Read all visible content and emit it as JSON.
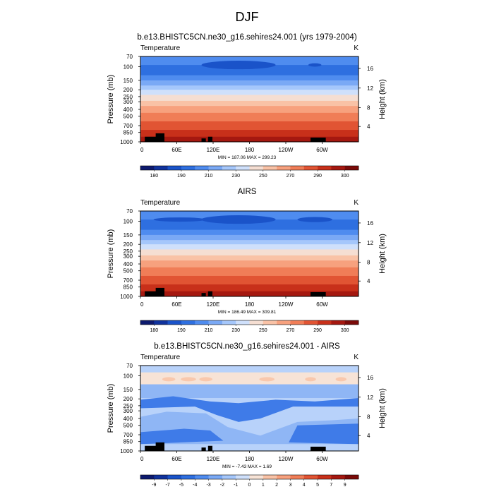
{
  "figure": {
    "title": "DJF"
  },
  "shared": {
    "x_ticks": [
      "0",
      "60E",
      "120E",
      "180",
      "120W",
      "60W"
    ],
    "y_ticks": [
      "70",
      "100",
      "150",
      "200",
      "250",
      "300",
      "400",
      "500",
      "700",
      "850",
      "1000"
    ],
    "height_ticks": [
      "16",
      "12",
      "8",
      "4"
    ]
  },
  "chart_data": [
    {
      "type": "heatmap",
      "title": "b.e13.BHISTC5CN.ne30_g16.sehires24.001 (yrs 1979-2004)",
      "left_label": "Temperature",
      "right_label": "K",
      "ylabel": "Pressure (mb)",
      "ylabel_right": "Height (km)",
      "x_ticks": [
        "0",
        "60E",
        "120E",
        "180",
        "120W",
        "60W"
      ],
      "y_ticks": [
        "70",
        "100",
        "150",
        "200",
        "250",
        "300",
        "400",
        "500",
        "700",
        "850",
        "1000"
      ],
      "yright_ticks": [
        "16",
        "12",
        "8",
        "4"
      ],
      "stats": "MIN = 187.06  MAX = 299.23",
      "colorbar_labels": [
        "180",
        "190",
        "210",
        "230",
        "250",
        "270",
        "290",
        "300"
      ],
      "ylim": [
        1000,
        70
      ],
      "xlim": [
        0,
        360
      ]
    },
    {
      "type": "heatmap",
      "title": "AIRS",
      "left_label": "Temperature",
      "right_label": "K",
      "ylabel": "Pressure (mb)",
      "ylabel_right": "Height (km)",
      "x_ticks": [
        "0",
        "60E",
        "120E",
        "180",
        "120W",
        "60W"
      ],
      "y_ticks": [
        "70",
        "100",
        "150",
        "200",
        "250",
        "300",
        "400",
        "500",
        "700",
        "850",
        "1000"
      ],
      "yright_ticks": [
        "16",
        "12",
        "8",
        "4"
      ],
      "stats": "MIN = 186.49  MAX = 309.81",
      "colorbar_labels": [
        "180",
        "190",
        "210",
        "230",
        "250",
        "270",
        "290",
        "300"
      ],
      "ylim": [
        1000,
        70
      ],
      "xlim": [
        0,
        360
      ]
    },
    {
      "type": "heatmap",
      "title": "b.e13.BHISTC5CN.ne30_g16.sehires24.001 - AIRS",
      "left_label": "Temperature",
      "right_label": "K",
      "ylabel": "Pressure (mb)",
      "ylabel_right": "Height (km)",
      "x_ticks": [
        "0",
        "60E",
        "120E",
        "180",
        "120W",
        "60W"
      ],
      "y_ticks": [
        "70",
        "100",
        "150",
        "200",
        "250",
        "300",
        "400",
        "500",
        "700",
        "850",
        "1000"
      ],
      "yright_ticks": [
        "16",
        "12",
        "8",
        "4"
      ],
      "stats": "MIN = -7.43  MAX =  1.69",
      "colorbar_labels": [
        "-9",
        "-7",
        "-5",
        "-4",
        "-3",
        "-2",
        "-1",
        "0",
        "1",
        "2",
        "3",
        "4",
        "5",
        "7",
        "9"
      ],
      "ylim": [
        1000,
        70
      ],
      "xlim": [
        0,
        360
      ]
    }
  ],
  "colors": {
    "temp_levels": [
      "#0d1a6e",
      "#10329c",
      "#1a53c9",
      "#2e6fe0",
      "#4f8cef",
      "#7aa9f5",
      "#a5c7fb",
      "#cfe0fb",
      "#f5ded2",
      "#f9c2a6",
      "#f7a17e",
      "#f07d57",
      "#e15433",
      "#c8301a",
      "#a51810",
      "#7a0a08"
    ],
    "diff_levels": [
      "#0d1a6e",
      "#10329c",
      "#1a53c9",
      "#2e6fe0",
      "#4f8cef",
      "#7aa9f5",
      "#a5c7fb",
      "#cfe0fb",
      "#f7e3d6",
      "#f9c2a6",
      "#f7a17e",
      "#f07d57",
      "#e15433",
      "#c8301a",
      "#a51810",
      "#7a0a08"
    ],
    "diff_blue_mid": "#3f7be8",
    "diff_blue_light": "#8fb6f5",
    "diff_blue_pale": "#b8d2fa",
    "diff_pinkish": "#f7e3d6",
    "diff_peach": "#f9c8ad",
    "topography": "#000000"
  }
}
